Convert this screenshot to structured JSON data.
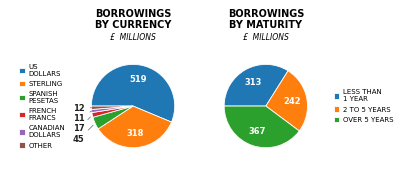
{
  "chart_data": [
    {
      "type": "pie",
      "title": "BORROWINGS\nBY CURRENCY",
      "subtitle": "£  MILLIONS",
      "categories": [
        "US\nDOLLARS",
        "STERLING",
        "SPANISH\nPESETAS",
        "FRENCH\nFRANCS",
        "CANADIAN\nDOLLARS",
        "OTHER"
      ],
      "values": [
        519,
        318,
        45,
        17,
        11,
        12
      ],
      "data_labels": true,
      "legend": "left"
    },
    {
      "type": "pie",
      "title": "BORROWINGS\nBY MATURITY",
      "subtitle": "£  MILLIONS",
      "categories": [
        "LESS THAN\n1 YEAR",
        "2 TO 5 YEARS",
        "OVER 5 YEARS"
      ],
      "values": [
        313,
        242,
        367
      ],
      "data_labels": true,
      "legend": "right"
    }
  ]
}
